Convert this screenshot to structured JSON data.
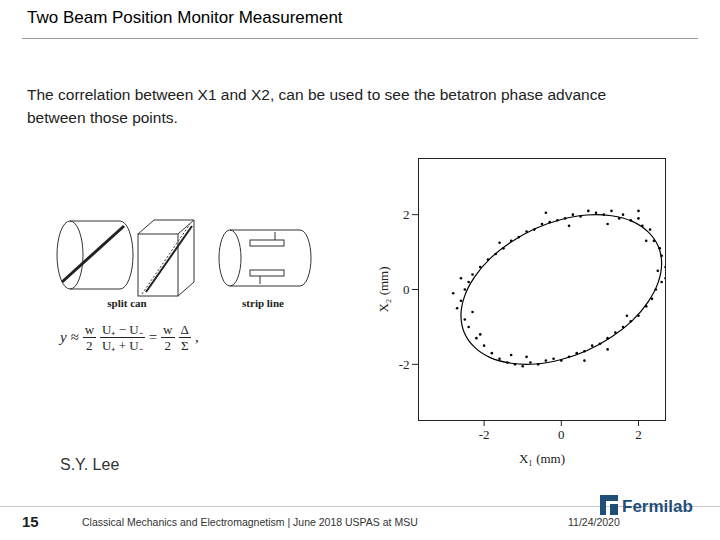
{
  "title": "Two Beam Position Monitor Measurement",
  "body": "The correlation between X1 and X2, can be used to see the betatron phase advance between those points.",
  "diagram": {
    "labels": [
      "split can",
      "strip line"
    ]
  },
  "formula": {
    "lhs": "y ≈",
    "w": "w",
    "two": "2",
    "numerator": "U₊ − U₋",
    "denominator": "U₊ + U₋",
    "equals": "=",
    "delta": "Δ",
    "sigma": "Σ",
    "end": ","
  },
  "credit": "S.Y. Lee",
  "footer": {
    "page": "15",
    "text": "Classical Mechanics and Electromagnetism | June 2018 USPAS at MSU",
    "date": "11/24/2020",
    "logo": "Fermilab"
  },
  "chart_data": {
    "type": "scatter",
    "x_label": "X₁ (mm)",
    "y_label": "X₂ (mm)",
    "xlim": [
      -3.7,
      2.7
    ],
    "ylim": [
      -3.5,
      3.5
    ],
    "xticks": [
      -2,
      0,
      2
    ],
    "yticks": [
      -2,
      0,
      2
    ],
    "color": "#000000",
    "marker": "dot",
    "x": [
      2.6,
      2.5,
      2.7,
      2.55,
      2.4,
      2.3,
      2.1,
      2.0,
      1.8,
      1.6,
      1.5,
      1.3,
      1.1,
      0.9,
      0.7,
      0.5,
      0.3,
      0.1,
      -0.1,
      -0.3,
      -0.5,
      -0.7,
      -0.9,
      -1.1,
      -1.3,
      -1.5,
      -1.7,
      -1.9,
      -2.1,
      -2.3,
      -2.4,
      -2.5,
      -2.6,
      -2.7,
      -2.5,
      -2.4,
      -2.2,
      -2.0,
      -1.8,
      -1.6,
      -1.4,
      -1.2,
      -1.0,
      -0.8,
      -0.6,
      -0.4,
      -0.2,
      0.0,
      0.2,
      0.4,
      0.6,
      0.8,
      1.0,
      1.2,
      1.4,
      1.6,
      1.8,
      2.0,
      2.2,
      2.35,
      2.45,
      2.6,
      2.0,
      1.2,
      -0.4,
      -1.6,
      -2.6,
      -2.8,
      -2.1,
      -0.9,
      0.6,
      1.7,
      2.7,
      2.2,
      0.2,
      -1.3,
      1.2,
      -2.3
    ],
    "y": [
      0.9,
      0.5,
      0.3,
      1.1,
      1.3,
      1.6,
      1.7,
      1.9,
      1.85,
      2.0,
      1.9,
      2.1,
      2.0,
      2.05,
      2.1,
      1.95,
      2.0,
      1.9,
      1.85,
      1.8,
      1.75,
      1.6,
      1.55,
      1.4,
      1.3,
      1.1,
      0.95,
      0.8,
      0.6,
      0.4,
      0.2,
      0.0,
      -0.3,
      -0.5,
      -0.8,
      -1.0,
      -1.3,
      -1.5,
      -1.7,
      -1.85,
      -1.95,
      -2.0,
      -2.05,
      -1.95,
      -2.0,
      -1.9,
      -1.85,
      -1.9,
      -1.8,
      -1.7,
      -1.65,
      -1.5,
      -1.45,
      -1.3,
      -1.15,
      -1.0,
      -0.85,
      -0.7,
      -0.45,
      -0.25,
      0.0,
      0.2,
      2.1,
      1.75,
      2.05,
      1.25,
      0.3,
      -0.1,
      -1.2,
      -1.8,
      -1.9,
      -0.7,
      0.6,
      1.3,
      1.7,
      -1.75,
      -1.6,
      -0.6
    ],
    "fit": {
      "x": [
        2.6,
        2.51,
        2.25,
        1.84,
        1.3,
        0.67,
        0.0,
        -0.67,
        -1.3,
        -1.84,
        -2.25,
        -2.51,
        -2.6,
        -2.51,
        -2.25,
        -1.84,
        -1.3,
        -0.67,
        0.0,
        0.67,
        1.3,
        1.84,
        2.25,
        2.51
      ],
      "y": [
        0.7,
        1.16,
        1.54,
        1.82,
        1.97,
        1.99,
        1.87,
        1.63,
        1.27,
        0.83,
        0.33,
        -0.19,
        -0.7,
        -1.16,
        -1.54,
        -1.82,
        -1.97,
        -1.99,
        -1.87,
        -1.63,
        -1.27,
        -0.83,
        -0.33,
        0.19
      ]
    }
  }
}
